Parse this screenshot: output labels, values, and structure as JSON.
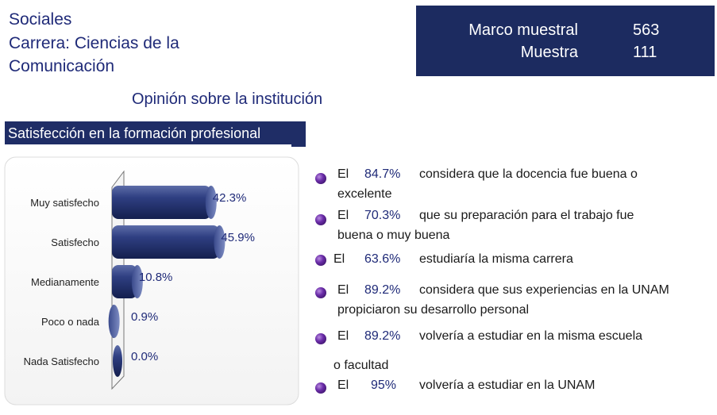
{
  "header": {
    "line1": "Sociales",
    "line2": "Carrera: Ciencias de la",
    "line3": "Comunicación"
  },
  "stats": {
    "marco_label": "Marco muestral",
    "marco_value": "563",
    "muestra_label": "Muestra",
    "muestra_value": "111"
  },
  "subtitle": "Opinión sobre la institución",
  "section_title": "Satisfección en la formación profesional",
  "chart_data": {
    "type": "bar",
    "orientation": "horizontal",
    "categories": [
      "Muy satisfecho",
      "Satisfecho",
      "Medianamente",
      "Poco o nada",
      "Nada Satisfecho"
    ],
    "values": [
      42.3,
      45.9,
      10.8,
      0.9,
      0.0
    ],
    "value_labels": [
      "42.3%",
      "45.9%",
      "10.8%",
      "0.9%",
      "0.0%"
    ],
    "xlim": [
      0,
      50
    ],
    "bar_color": "#2b3a7a",
    "label_color": "#1f2a78"
  },
  "statements": [
    {
      "el": "El",
      "pct": "84.7%",
      "text": "considera que la docencia fue buena o",
      "cont": "excelente"
    },
    {
      "el": "El",
      "pct": "70.3%",
      "text": "que su preparación para el trabajo fue",
      "cont": "buena o muy buena"
    },
    {
      "el": "El",
      "pct": "63.6%",
      "text": "estudiaría la misma carrera"
    },
    {
      "el": "El",
      "pct": "89.2%",
      "text": "considera que sus experiencias en la UNAM",
      "cont": "propiciaron su desarrollo personal"
    },
    {
      "el": "El",
      "pct": "89.2%",
      "text": "volvería a estudiar en la misma escuela",
      "cont": "o facultad"
    },
    {
      "el": "El",
      "pct": "95%",
      "text": "volvería a estudiar en la UNAM"
    }
  ]
}
